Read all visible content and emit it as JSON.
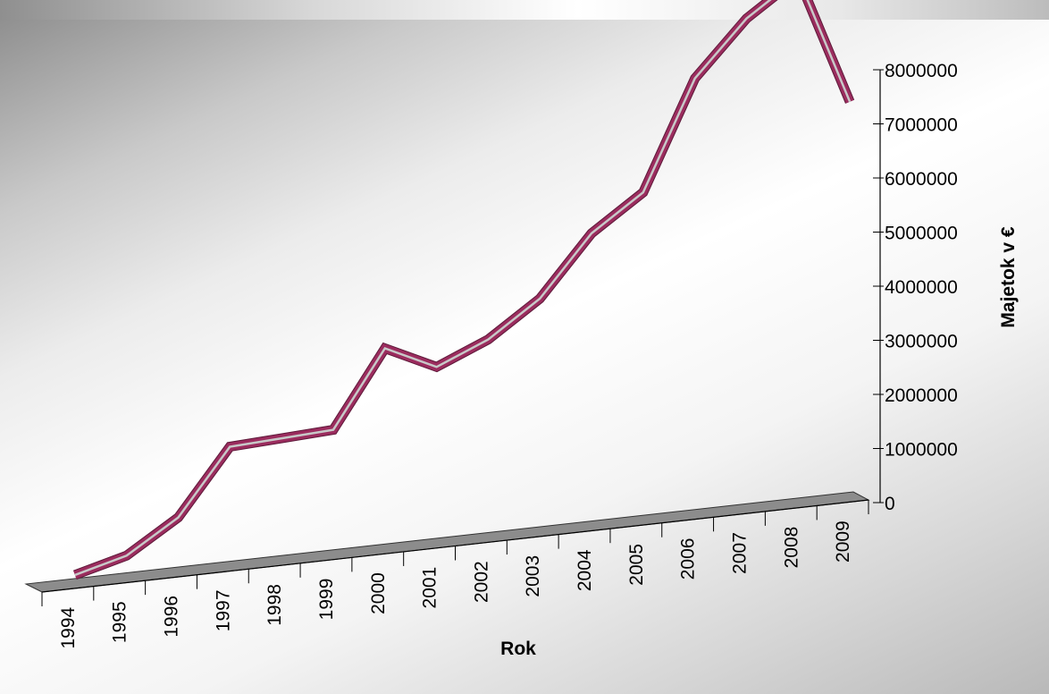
{
  "chart_data": {
    "type": "line",
    "title": "",
    "xlabel": "Rok",
    "ylabel": "Majetok v €",
    "categories": [
      "1994",
      "1995",
      "1996",
      "1997",
      "1998",
      "1999",
      "2000",
      "2001",
      "2002",
      "2003",
      "2004",
      "2005",
      "2006",
      "2007",
      "2008",
      "2009"
    ],
    "series": [
      {
        "values": [
          50000,
          300000,
          900000,
          2100000,
          2150000,
          2200000,
          3600000,
          3150000,
          3550000,
          4200000,
          5300000,
          5950000,
          7950000,
          8950000,
          9600000,
          7200000
        ]
      }
    ],
    "y_ticks": [
      "0",
      "1000000",
      "2000000",
      "3000000",
      "4000000",
      "5000000",
      "6000000",
      "7000000",
      "8000000"
    ],
    "ylim": [
      0,
      8000000
    ],
    "grid": false,
    "legend": "none",
    "line_color": "#9b2c5e",
    "line_highlight": "#c8c8c8",
    "floor_color": "#8c8c8c"
  }
}
